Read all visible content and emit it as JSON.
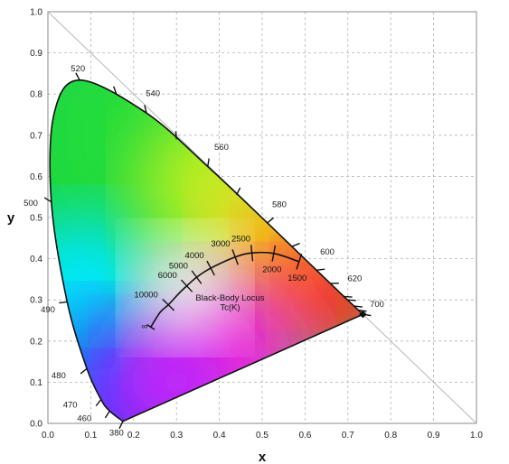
{
  "chart_data": {
    "type": "scatter",
    "title": "",
    "xlabel": "x",
    "ylabel": "y",
    "xlim": [
      0,
      1
    ],
    "ylim": [
      0,
      1
    ],
    "grid": true,
    "x_ticks": [
      "0.0",
      "0.1",
      "0.2",
      "0.3",
      "0.4",
      "0.5",
      "0.6",
      "0.7",
      "0.8",
      "0.9",
      "1.0"
    ],
    "y_ticks": [
      "0.0",
      "0.1",
      "0.2",
      "0.3",
      "0.4",
      "0.5",
      "0.6",
      "0.7",
      "0.8",
      "0.9",
      "1.0"
    ],
    "reference_line": {
      "x": [
        0,
        1
      ],
      "y": [
        1,
        0
      ]
    },
    "spectral_locus": [
      {
        "wl": "380",
        "x": 0.175,
        "y": 0.005
      },
      {
        "wl": "460",
        "x": 0.144,
        "y": 0.03
      },
      {
        "wl": "470",
        "x": 0.124,
        "y": 0.058
      },
      {
        "wl": "480",
        "x": 0.091,
        "y": 0.133
      },
      {
        "wl": "490",
        "x": 0.045,
        "y": 0.295
      },
      {
        "wl": "500",
        "x": 0.008,
        "y": 0.538
      },
      {
        "wl": "",
        "x": 0.014,
        "y": 0.75
      },
      {
        "wl": "520",
        "x": 0.074,
        "y": 0.834
      },
      {
        "wl": "540",
        "x": 0.23,
        "y": 0.754
      },
      {
        "wl": "560",
        "x": 0.373,
        "y": 0.624
      },
      {
        "wl": "580",
        "x": 0.512,
        "y": 0.487
      },
      {
        "wl": "600",
        "x": 0.627,
        "y": 0.372
      },
      {
        "wl": "620",
        "x": 0.691,
        "y": 0.308
      },
      {
        "wl": "700",
        "x": 0.735,
        "y": 0.265
      }
    ],
    "wavelength_labels": [
      {
        "text": "520",
        "x": 0.07,
        "y": 0.855
      },
      {
        "text": "540",
        "x": 0.245,
        "y": 0.795
      },
      {
        "text": "560",
        "x": 0.405,
        "y": 0.665
      },
      {
        "text": "580",
        "x": 0.54,
        "y": 0.525
      },
      {
        "text": "600",
        "x": 0.652,
        "y": 0.41
      },
      {
        "text": "620",
        "x": 0.716,
        "y": 0.345
      },
      {
        "text": "700",
        "x": 0.768,
        "y": 0.283
      },
      {
        "text": "500",
        "x": -0.04,
        "y": 0.528
      },
      {
        "text": "490",
        "x": 0.0,
        "y": 0.27
      },
      {
        "text": "480",
        "x": 0.025,
        "y": 0.11
      },
      {
        "text": "470",
        "x": 0.052,
        "y": 0.038
      },
      {
        "text": "460",
        "x": 0.085,
        "y": 0.005
      },
      {
        "text": "380",
        "x": 0.16,
        "y": -0.03
      }
    ],
    "blackbody_locus": {
      "label": "Black-Body Locus",
      "unit_label": "Tc(K)",
      "points": [
        {
          "x": 0.24,
          "y": 0.234
        },
        {
          "x": 0.262,
          "y": 0.27
        },
        {
          "x": 0.281,
          "y": 0.288
        },
        {
          "x": 0.306,
          "y": 0.316
        },
        {
          "x": 0.324,
          "y": 0.334
        },
        {
          "x": 0.347,
          "y": 0.355
        },
        {
          "x": 0.38,
          "y": 0.377
        },
        {
          "x": 0.437,
          "y": 0.404
        },
        {
          "x": 0.476,
          "y": 0.414
        },
        {
          "x": 0.527,
          "y": 0.413
        },
        {
          "x": 0.586,
          "y": 0.393
        }
      ],
      "temperatures": [
        {
          "text": "10000",
          "x": 0.281,
          "y": 0.288
        },
        {
          "text": "6000",
          "x": 0.324,
          "y": 0.334
        },
        {
          "text": "5000",
          "x": 0.347,
          "y": 0.355
        },
        {
          "text": "4000",
          "x": 0.38,
          "y": 0.377
        },
        {
          "text": "3000",
          "x": 0.437,
          "y": 0.404
        },
        {
          "text": "2500",
          "x": 0.476,
          "y": 0.414
        },
        {
          "text": "2000",
          "x": 0.527,
          "y": 0.413
        },
        {
          "text": "1500",
          "x": 0.586,
          "y": 0.393
        }
      ],
      "infinity_label": "∞"
    }
  }
}
